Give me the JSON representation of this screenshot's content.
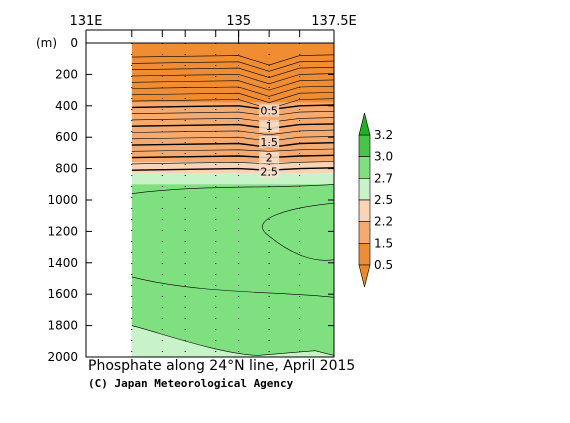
{
  "chart_data": {
    "type": "heatmap",
    "title": "Phosphate along 24°N line, April 2015",
    "credit": "(C) Japan Meteorological Agency",
    "x_ticks": [
      "131E",
      "135",
      "137.5E"
    ],
    "xlim": [
      131,
      137.5
    ],
    "ylabel": "(m)",
    "y_ticks": [
      0,
      200,
      400,
      600,
      800,
      1000,
      1200,
      1400,
      1600,
      1800,
      2000
    ],
    "ylim": [
      0,
      2000
    ],
    "data_x_start": 132.2,
    "station_lons": [
      132.2,
      133.0,
      133.6,
      134.4,
      135.0,
      135.8,
      136.6,
      137.5
    ],
    "colorbar_levels": [
      0.5,
      1.5,
      2.2,
      2.5,
      2.7,
      3.0,
      3.2
    ],
    "colorbar_labels": [
      "3.2",
      "3.0",
      "2.7",
      "2.5",
      "2.2",
      "1.5",
      "0.5"
    ],
    "colorbar_colors": [
      "#46c646",
      "#7ee07e",
      "#c8f2c8",
      "#fad4b4",
      "#f5aa70",
      "#f08c32"
    ],
    "contour_labels": [
      "0.5",
      "1",
      "1.5",
      "2",
      "2.5"
    ],
    "bands": [
      {
        "level": "< 0.5",
        "color": "#f08c32",
        "depth_top": 0,
        "depth_bottom": 380
      },
      {
        "level": "0.5-1.5",
        "color": "#f5aa70",
        "depth_top": 380,
        "depth_bottom": 650
      },
      {
        "level": "1.5-2.2",
        "color": "#f5aa70",
        "depth_top": 650,
        "depth_bottom": 760
      },
      {
        "level": "2.2-2.5",
        "color": "#fad4b4",
        "depth_top": 760,
        "depth_bottom": 830
      },
      {
        "level": "2.5-2.7",
        "color": "#c8f2c8",
        "depth_top": 830,
        "depth_bottom": 900
      },
      {
        "level": "2.7-3.0",
        "color": "#7ee07e",
        "depth_top": 900,
        "depth_bottom": 2000
      }
    ]
  }
}
